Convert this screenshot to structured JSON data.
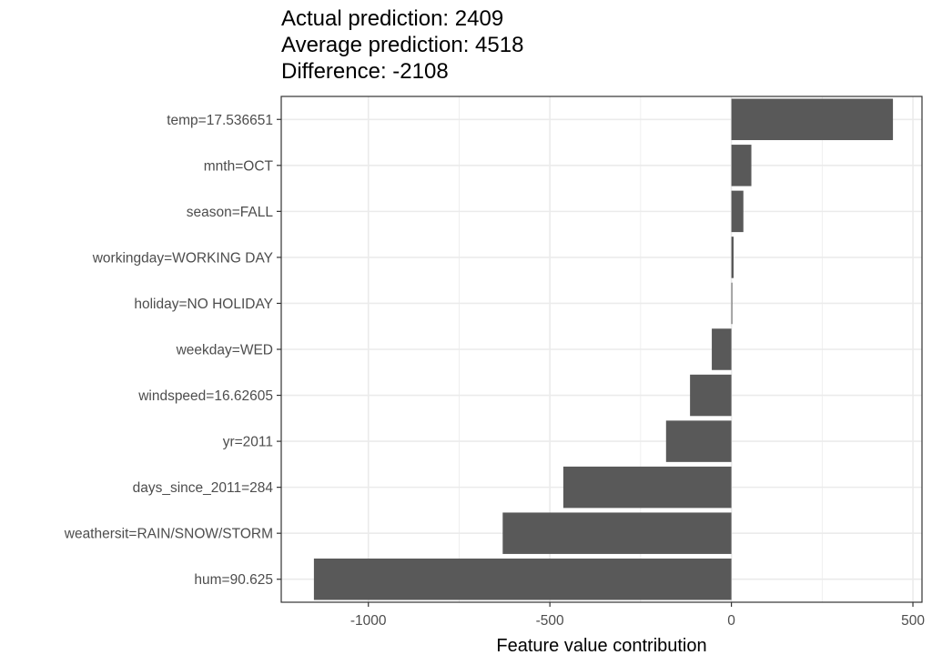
{
  "chart_data": {
    "type": "bar",
    "orientation": "horizontal",
    "title_lines": [
      "Actual prediction: 2409",
      "Average prediction: 4518",
      "Difference: -2108"
    ],
    "xlabel": "Feature value contribution",
    "ylabel": "",
    "categories": [
      "temp=17.536651",
      "mnth=OCT",
      "season=FALL",
      "workingday=WORKING DAY",
      "holiday=NO HOLIDAY",
      "weekday=WED",
      "windspeed=16.62605",
      "yr=2011",
      "days_since_2011=284",
      "weathersit=RAIN/SNOW/STORM",
      "hum=90.625"
    ],
    "values": [
      445,
      55,
      33,
      6,
      1,
      -54,
      -114,
      -180,
      -463,
      -630,
      -1150
    ],
    "xlim": [
      -1240,
      525
    ],
    "xticks": [
      -1000,
      -500,
      0,
      500
    ],
    "xtick_labels": [
      "-1000",
      "-500",
      "0",
      "500"
    ],
    "grid": true,
    "bar_color": "#595959",
    "grid_color": "#ebebeb"
  }
}
